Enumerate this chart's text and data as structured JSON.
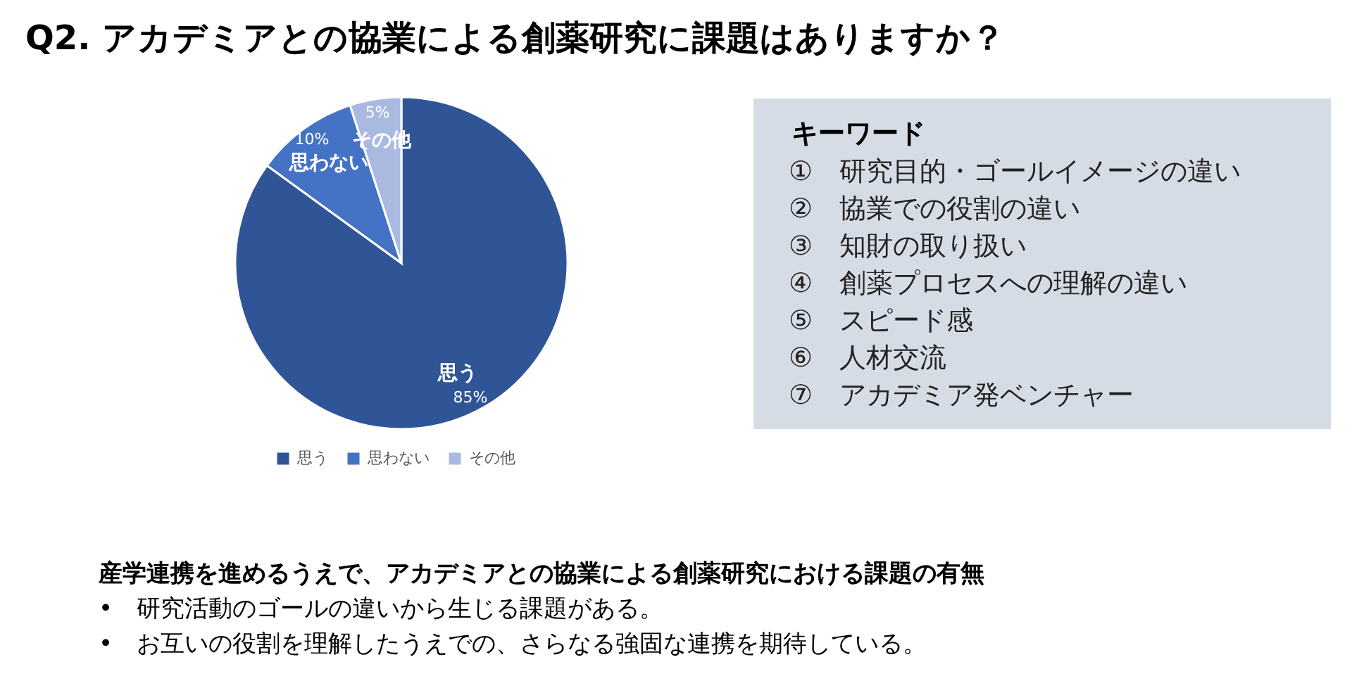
{
  "chart_data": [
    {
      "type": "pie",
      "title": "Q2. アカデミアとの協業による創薬研究に課題はありますか？",
      "categories": [
        "思う",
        "思わない",
        "その他"
      ],
      "values": [
        85,
        10,
        5
      ],
      "colors": [
        "#2f5597",
        "#4472c4",
        "#a9b9e0"
      ],
      "value_labels": [
        "85%",
        "10%",
        "5%"
      ],
      "legend": "bottom",
      "annotations": [
        "産学連携を進めるうえで、アカデミアとの協業による創薬研究における課題の有無",
        "•　研究活動のゴールの違いから生じる課題がある。",
        "•　お互いの役割を理解したうえでの、さらなる強固な連携を期待している。"
      ]
    },
    {
      "type": "other",
      "title": "キーワード",
      "annotations": [
        "①　研究目的・ゴールイメージの違い",
        "②　協業での役割の違い",
        "③　知財の取り扱い",
        "④　創薬プロセスへの理解の違い",
        "⑤　スピード感",
        "⑥　人材交流",
        "⑦　アカデミア発ベンチャー"
      ]
    }
  ]
}
